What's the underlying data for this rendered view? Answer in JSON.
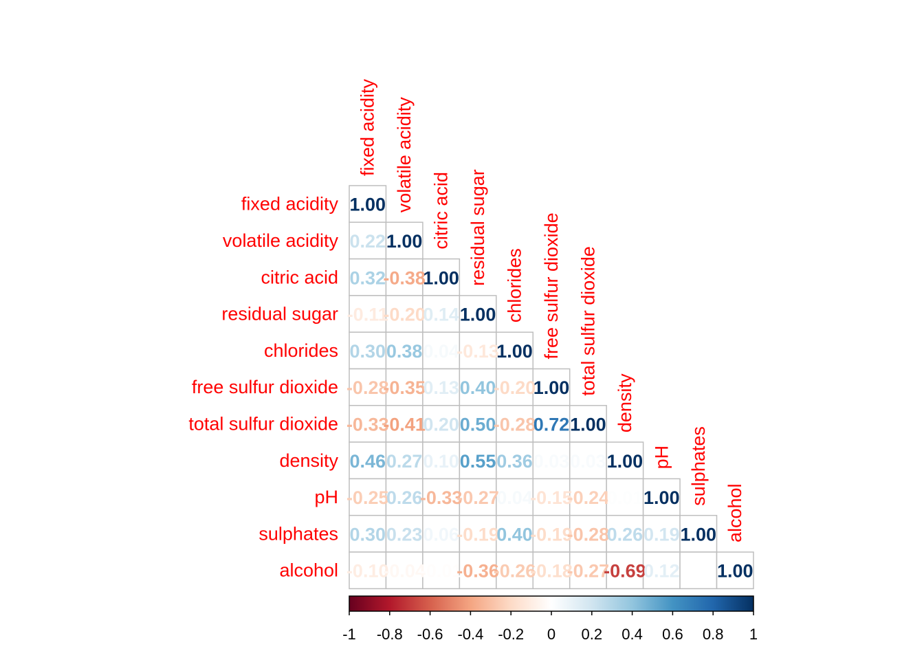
{
  "chart_data": {
    "type": "heatmap",
    "title": "",
    "subtitle": "",
    "method": "number",
    "layout": "lower-triangle",
    "variables": [
      "fixed acidity",
      "volatile acidity",
      "citric acid",
      "residual sugar",
      "chlorides",
      "free sulfur dioxide",
      "total sulfur dioxide",
      "density",
      "pH",
      "sulphates",
      "alcohol"
    ],
    "row_labels": [
      "fixed acidity",
      "volatile acidity",
      "citric acid",
      "residual sugar",
      "chlorides",
      "free sulfur dioxide",
      "total sulfur dioxide",
      "density",
      "pH",
      "sulphates",
      "alcohol"
    ],
    "col_labels": [
      "fixed acidity",
      "volatile acidity",
      "citric acid",
      "residual sugar",
      "chlorides",
      "free sulfur dioxide",
      "total sulfur dioxide",
      "density",
      "pH",
      "sulphates",
      "alcohol"
    ],
    "values": [
      [
        1.0
      ],
      [
        0.22,
        1.0
      ],
      [
        0.32,
        -0.38,
        1.0
      ],
      [
        -0.11,
        -0.2,
        0.14,
        1.0
      ],
      [
        0.3,
        0.38,
        0.04,
        -0.13,
        1.0
      ],
      [
        -0.28,
        -0.35,
        0.13,
        0.4,
        -0.2,
        1.0
      ],
      [
        -0.33,
        -0.41,
        0.2,
        0.5,
        -0.28,
        0.72,
        1.0
      ],
      [
        0.46,
        0.27,
        0.1,
        0.55,
        0.36,
        0.03,
        0.03,
        1.0
      ],
      [
        -0.25,
        0.26,
        -0.33,
        -0.27,
        0.04,
        -0.15,
        -0.24,
        0.01,
        1.0
      ],
      [
        0.3,
        0.23,
        0.06,
        -0.19,
        0.4,
        -0.19,
        -0.28,
        0.26,
        0.19,
        1.0
      ],
      [
        -0.1,
        -0.04,
        -0.01,
        -0.36,
        -0.26,
        -0.18,
        -0.27,
        -0.69,
        0.12,
        -0.0,
        1.0
      ]
    ],
    "colorbar": {
      "range": [
        -1,
        1
      ],
      "ticks": [
        "-1",
        "-0.8",
        "-0.6",
        "-0.4",
        "-0.2",
        "0",
        "0.2",
        "0.4",
        "0.6",
        "0.8",
        "1"
      ],
      "placement": "bottom",
      "colors": [
        "#67001f",
        "#b2182b",
        "#d6604d",
        "#f4a582",
        "#fddbc7",
        "#ffffff",
        "#d1e5f0",
        "#92c5de",
        "#4393c3",
        "#2166ac",
        "#053061"
      ]
    },
    "label_color": "#ff0000",
    "grid_color": "#bebebe",
    "xlabel": "",
    "ylabel": ""
  }
}
